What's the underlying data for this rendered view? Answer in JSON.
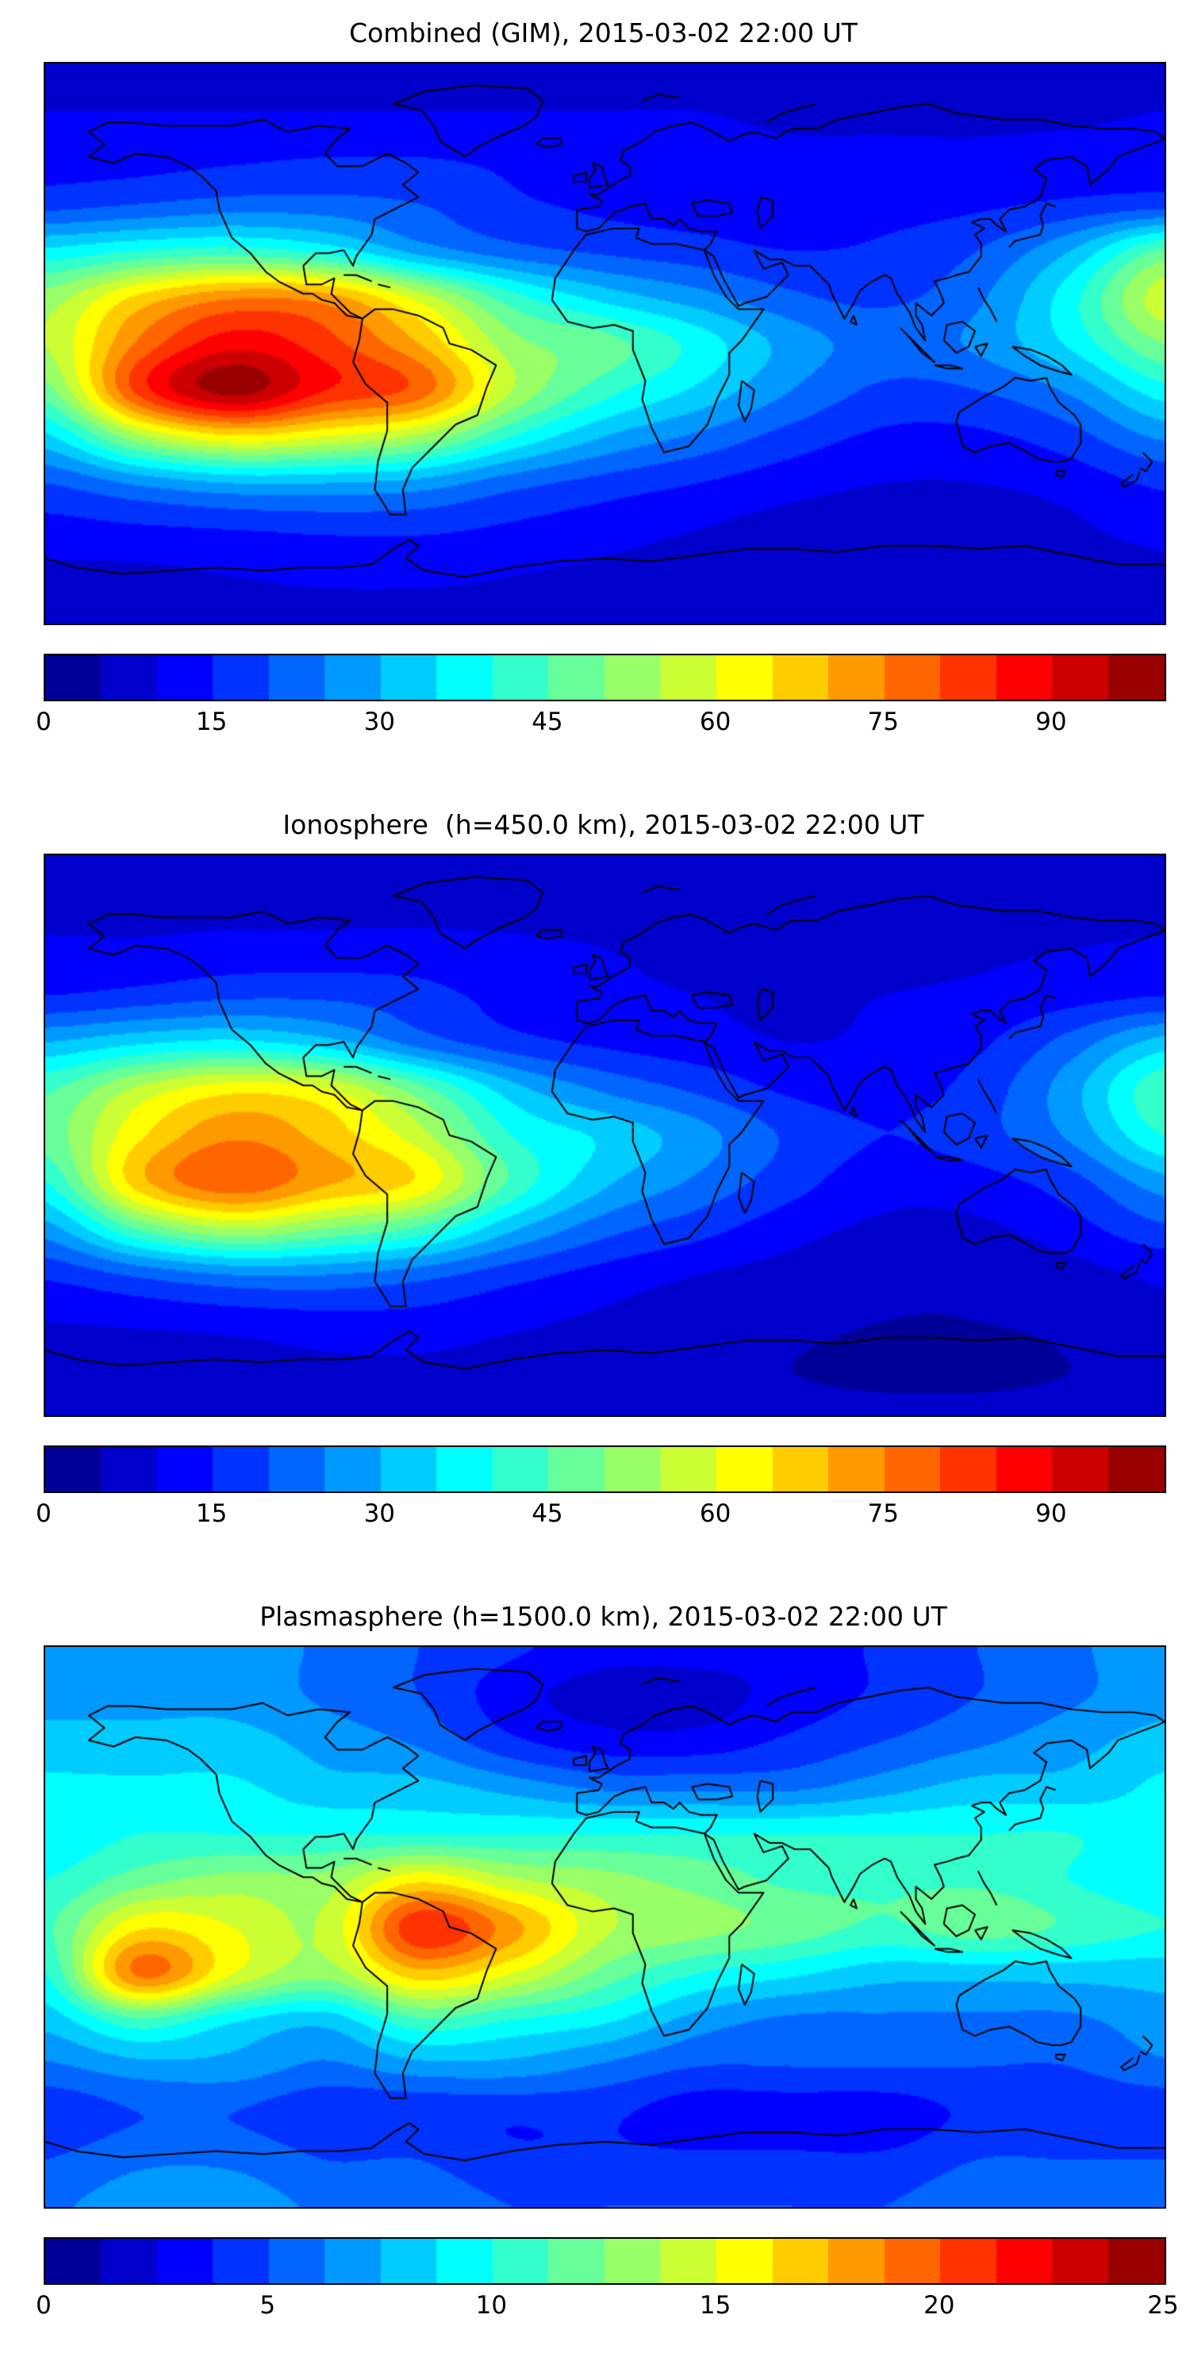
{
  "figure_background": "#ffffff",
  "colormap": "jet",
  "coastline_color": "#000000",
  "chart_data": [
    {
      "type": "heatmap",
      "title": "Combined (GIM), 2015-03-02 22:00 UT",
      "x_lon": [
        -180,
        -150,
        -120,
        -90,
        -60,
        -30,
        0,
        30,
        60,
        90,
        120,
        150,
        180
      ],
      "y_lat": [
        90,
        75,
        60,
        45,
        30,
        15,
        0,
        -15,
        -30,
        -45,
        -60,
        -75,
        -90
      ],
      "values": [
        [
          8,
          8,
          8,
          8,
          8,
          8,
          8,
          8,
          8,
          8,
          8,
          8,
          8
        ],
        [
          10,
          10,
          10,
          10,
          10,
          10,
          10,
          10,
          9,
          9,
          9,
          9,
          10
        ],
        [
          13,
          13,
          14,
          15,
          15,
          14,
          13,
          12,
          11,
          11,
          11,
          12,
          13
        ],
        [
          18,
          20,
          22,
          22,
          20,
          16,
          14,
          13,
          12,
          13,
          14,
          16,
          18
        ],
        [
          36,
          40,
          42,
          38,
          28,
          22,
          19,
          17,
          15,
          16,
          20,
          30,
          46
        ],
        [
          52,
          66,
          74,
          72,
          58,
          42,
          33,
          27,
          21,
          19,
          24,
          38,
          58
        ],
        [
          55,
          76,
          88,
          82,
          70,
          52,
          47,
          38,
          28,
          23,
          26,
          36,
          50
        ],
        [
          48,
          82,
          97,
          85,
          78,
          55,
          42,
          34,
          25,
          19,
          20,
          26,
          38
        ],
        [
          34,
          54,
          64,
          60,
          54,
          40,
          30,
          24,
          18,
          14,
          14,
          18,
          26
        ],
        [
          20,
          26,
          30,
          30,
          28,
          22,
          18,
          15,
          12,
          10,
          10,
          12,
          16
        ],
        [
          13,
          14,
          15,
          16,
          16,
          14,
          12,
          10,
          8,
          7,
          7,
          9,
          12
        ],
        [
          9,
          9,
          10,
          11,
          11,
          10,
          9,
          8,
          7,
          6,
          6,
          7,
          8
        ],
        [
          8,
          8,
          8,
          8,
          8,
          8,
          8,
          8,
          8,
          8,
          8,
          8,
          8
        ]
      ],
      "colorbar": {
        "min": 0,
        "max": 100,
        "step": 5,
        "ticks": [
          0,
          15,
          30,
          45,
          60,
          75,
          90
        ]
      }
    },
    {
      "type": "heatmap",
      "title": "Ionosphere  (h=450.0 km), 2015-03-02 22:00 UT",
      "x_lon": [
        -180,
        -150,
        -120,
        -90,
        -60,
        -30,
        0,
        30,
        60,
        90,
        120,
        150,
        180
      ],
      "y_lat": [
        90,
        75,
        60,
        45,
        30,
        15,
        0,
        -15,
        -30,
        -45,
        -60,
        -75,
        -90
      ],
      "values": [
        [
          6,
          6,
          6,
          6,
          6,
          6,
          6,
          6,
          6,
          6,
          6,
          6,
          6
        ],
        [
          8,
          8,
          8,
          8,
          8,
          8,
          8,
          8,
          7,
          7,
          7,
          7,
          8
        ],
        [
          11,
          11,
          12,
          12,
          12,
          11,
          10,
          9,
          8,
          8,
          9,
          10,
          11
        ],
        [
          15,
          17,
          19,
          19,
          17,
          13,
          11,
          10,
          9,
          10,
          11,
          13,
          15
        ],
        [
          30,
          34,
          36,
          32,
          23,
          17,
          14,
          12,
          10,
          11,
          14,
          22,
          32
        ],
        [
          44,
          56,
          63,
          60,
          47,
          32,
          24,
          19,
          14,
          13,
          17,
          28,
          44
        ],
        [
          47,
          64,
          74,
          68,
          57,
          40,
          34,
          27,
          19,
          15,
          18,
          26,
          40
        ],
        [
          40,
          68,
          79,
          71,
          64,
          44,
          31,
          24,
          17,
          12,
          13,
          18,
          28
        ],
        [
          28,
          46,
          55,
          50,
          44,
          31,
          22,
          17,
          12,
          9,
          9,
          13,
          19
        ],
        [
          16,
          21,
          25,
          25,
          22,
          17,
          13,
          10,
          8,
          6,
          6,
          8,
          11
        ],
        [
          10,
          11,
          12,
          13,
          13,
          11,
          9,
          7,
          6,
          5,
          5,
          6,
          9
        ],
        [
          7,
          7,
          8,
          9,
          9,
          8,
          7,
          6,
          5,
          4,
          4,
          5,
          6
        ],
        [
          6,
          6,
          6,
          6,
          6,
          6,
          6,
          6,
          6,
          6,
          6,
          6,
          6
        ]
      ],
      "colorbar": {
        "min": 0,
        "max": 100,
        "step": 5,
        "ticks": [
          0,
          15,
          30,
          45,
          60,
          75,
          90
        ]
      }
    },
    {
      "type": "heatmap",
      "title": "Plasmasphere (h=1500.0 km), 2015-03-02 22:00 UT",
      "x_lon": [
        -180,
        -150,
        -120,
        -90,
        -60,
        -30,
        0,
        30,
        60,
        90,
        120,
        150,
        180
      ],
      "y_lat": [
        90,
        75,
        60,
        45,
        30,
        15,
        0,
        -15,
        -30,
        -45,
        -60,
        -75,
        -90
      ],
      "values": [
        [
          7,
          7,
          7,
          6,
          5,
          4,
          3,
          3,
          3,
          4,
          5,
          6,
          7
        ],
        [
          7,
          7,
          7,
          6,
          5,
          3,
          2,
          2,
          3,
          4,
          5,
          6,
          7
        ],
        [
          8,
          8,
          8,
          7,
          6,
          4,
          3,
          3,
          4,
          5,
          6,
          7,
          8
        ],
        [
          9,
          9,
          9,
          8,
          8,
          7,
          6,
          6,
          6,
          7,
          8,
          8,
          9
        ],
        [
          9,
          10,
          10,
          10,
          10,
          10,
          10,
          10,
          10,
          10,
          10,
          10,
          9
        ],
        [
          10,
          12,
          13,
          13,
          16,
          14,
          13,
          12,
          11,
          11,
          11,
          10,
          9
        ],
        [
          11,
          16,
          15,
          14,
          21,
          18,
          14,
          13,
          12,
          11,
          12,
          11,
          10
        ],
        [
          10,
          19,
          15,
          13,
          17,
          15,
          12,
          10,
          9,
          8,
          8,
          8,
          8
        ],
        [
          8,
          11,
          9,
          8,
          11,
          10,
          9,
          7,
          6,
          6,
          6,
          6,
          7
        ],
        [
          6,
          7,
          7,
          6,
          7,
          7,
          6,
          5,
          5,
          5,
          5,
          5,
          6
        ],
        [
          4,
          5,
          5,
          4,
          4,
          4,
          4,
          3,
          3,
          3,
          4,
          4,
          4
        ],
        [
          5,
          6,
          6,
          5,
          5,
          4,
          4,
          4,
          4,
          4,
          5,
          5,
          5
        ],
        [
          6,
          7,
          7,
          6,
          6,
          5,
          5,
          5,
          5,
          5,
          6,
          6,
          6
        ]
      ],
      "colorbar": {
        "min": 0,
        "max": 25,
        "step": 1.25,
        "ticks": [
          0,
          5,
          10,
          15,
          20,
          25
        ]
      }
    }
  ]
}
